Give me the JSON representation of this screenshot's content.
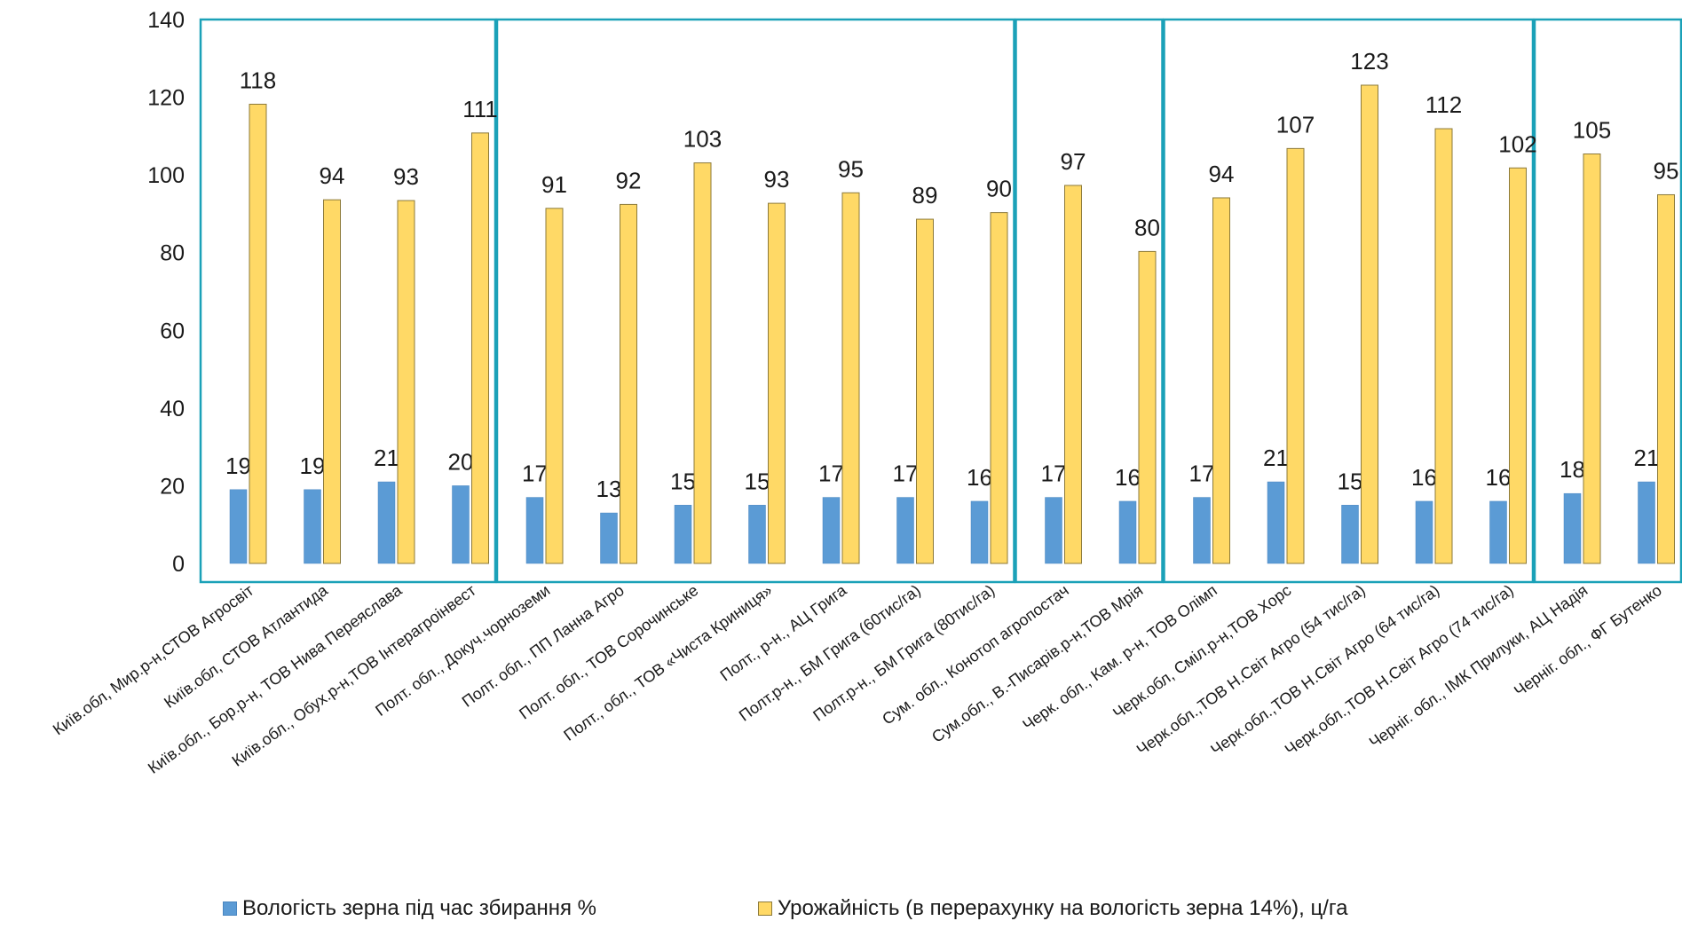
{
  "chart_data": {
    "type": "bar",
    "categories": [
      "Київ.обл, Мир.р-н,СТОВ Агросвіт",
      "Київ.обл, СТОВ Атлантида",
      "Київ.обл., Бор.р-н, ТОВ Нива Переяслава",
      "Київ.обл., Обух.р-н,ТОВ Інтерагроінвест",
      "Полт. обл., Докуч.чорноземи",
      "Полт. обл., ПП Ланна Агро",
      "Полт. обл., ТОВ Сорочинське",
      "Полт., обл., ТОВ «Чиста Криниця»",
      "Полт., р-н., АЦ Грига",
      "Полт.р-н., БМ Грига (60тис/га)",
      "Полт.р-н., БМ Грига (80тис/га)",
      "Сум. обл., Конотоп агропостач",
      "Сум.обл., В.-Писарів.р-н,ТОВ Мрія",
      "Черк. обл., Кам. р-н, ТОВ Олімп",
      "Черк.обл, Сміл.р-н,ТОВ Хорс",
      "Черк.обл.,ТОВ Н.Світ Агро (54 тис/га)",
      "Черк.обл.,ТОВ Н.Світ Агро (64 тис/га)",
      "Черк.обл.,ТОВ Н.Світ Агро (74 тис/га)",
      "Черніг. обл., ІМК Прилуки, АЦ Надія",
      "Черніг. обл., ФГ Бутенко"
    ],
    "series": [
      {
        "name": "Вологість зерна під час збирання %",
        "color": "#5b9bd5",
        "values": [
          19,
          19,
          21,
          20,
          17,
          13,
          15,
          15,
          17,
          17,
          16,
          17,
          16,
          17,
          21,
          15,
          16,
          16,
          18,
          21
        ],
        "labels": [
          "19",
          "19",
          "21",
          "20",
          "17",
          "13",
          "15",
          "15",
          "17",
          "17",
          "16",
          "17",
          "16",
          "17",
          "21",
          "15",
          "16",
          "16",
          "18",
          "21"
        ]
      },
      {
        "name": "Урожайність  (в перерахунку на вологість зерна 14%), ц/га",
        "color": "#ffd966",
        "values": [
          118.2,
          93.6,
          93.4,
          110.8,
          91.4,
          92.4,
          103.1,
          92.7,
          95.4,
          88.6,
          90.3,
          97.3,
          80.3,
          94.1,
          106.8,
          123.1,
          111.9,
          101.8,
          105.4,
          94.9
        ],
        "labels": [
          "118",
          "94",
          "93",
          "111",
          "91",
          "92",
          "103",
          "93",
          "95",
          "89",
          "90",
          "97",
          "80",
          "94",
          "107",
          "123",
          "112",
          "102",
          "105",
          "95"
        ]
      }
    ],
    "ylim": [
      0,
      140
    ],
    "yticks": [
      "0",
      "20",
      "40",
      "60",
      "80",
      "100",
      "120",
      "140"
    ],
    "grid": false,
    "legend_position": "bottom",
    "region_groups": [
      [
        0,
        3
      ],
      [
        4,
        10
      ],
      [
        11,
        12
      ],
      [
        13,
        17
      ],
      [
        18,
        19
      ]
    ],
    "group_border_color": "#1ba1b8"
  }
}
